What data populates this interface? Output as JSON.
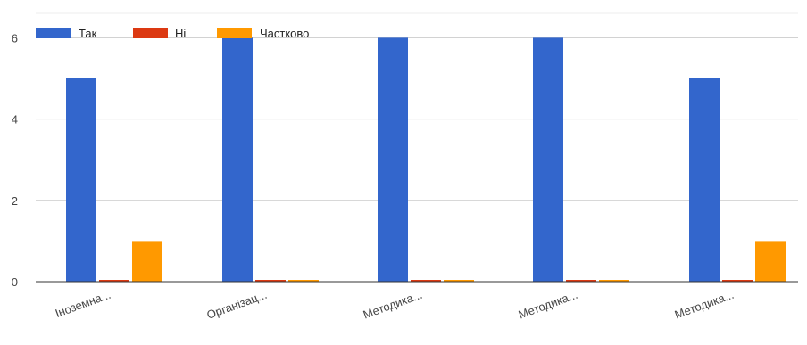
{
  "chart_data": {
    "type": "bar",
    "categories": [
      "Іноземна...",
      "Організац...",
      "Методика...",
      "Методика...",
      "Методика..."
    ],
    "series": [
      {
        "name": "Так",
        "color": "#3366cc",
        "values": [
          5,
          6,
          6,
          6,
          5
        ]
      },
      {
        "name": "Ні",
        "color": "#dc3912",
        "values": [
          0,
          0,
          0,
          0,
          0
        ]
      },
      {
        "name": "Частково",
        "color": "#ff9900",
        "values": [
          1,
          0,
          0,
          0,
          1
        ]
      }
    ],
    "yticks": [
      0,
      2,
      4,
      6
    ],
    "ylim": [
      0,
      6.6
    ],
    "grid": true,
    "legend_position": "top-left",
    "title": "",
    "xlabel": "",
    "ylabel": ""
  }
}
